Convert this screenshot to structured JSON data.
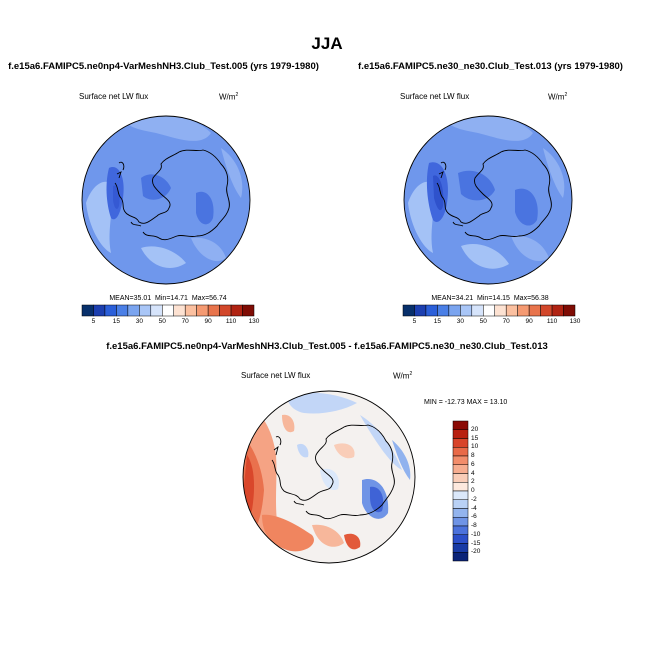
{
  "main_title": "JJA",
  "panels": [
    {
      "title": "f.e15a6.FAMIPC5.ne0np4-VarMeshNH3.Club_Test.005 (yrs 1979-1980)",
      "variable": "Surface net LW flux",
      "units": "W/m",
      "units_exp": "2",
      "stats": {
        "mean_label": "MEAN=",
        "mean": "35.01",
        "min_label": "Min=",
        "min": "14.71",
        "max_label": "Max=",
        "max": "56.74"
      }
    },
    {
      "title": "f.e15a6.FAMIPC5.ne30_ne30.Club_Test.013 (yrs 1979-1980)",
      "variable": "Surface net LW flux",
      "units": "W/m",
      "units_exp": "2",
      "stats": {
        "mean_label": "MEAN=",
        "mean": "34.21",
        "min_label": "Min=",
        "min": "14.15",
        "max_label": "Max=",
        "max": "56.38"
      }
    },
    {
      "title": "f.e15a6.FAMIPC5.ne0np4-VarMeshNH3.Club_Test.005 - f.e15a6.FAMIPC5.ne30_ne30.Club_Test.013",
      "variable": "Surface net LW flux",
      "units": "W/m",
      "units_exp": "2",
      "stats_text": "MIN = -12.73  MAX =  13.10"
    }
  ],
  "chart_data": [
    {
      "type": "heatmap",
      "projection": "south-polar-stereographic",
      "region": "Antarctica",
      "colorbar": {
        "orientation": "horizontal",
        "ticks": [
          "5",
          "15",
          "30",
          "50",
          "70",
          "90",
          "110",
          "130"
        ],
        "colors": [
          "#08306b",
          "#1c3fb0",
          "#2b5fd9",
          "#4a7fe6",
          "#7aa4ef",
          "#a9c6f7",
          "#d6e4fb",
          "#ffffff",
          "#fde2d2",
          "#fbc0a0",
          "#f59a72",
          "#e8744c",
          "#d2472a",
          "#b02312",
          "#7f0c04"
        ]
      },
      "field_colors": {
        "background": "#6f97ec",
        "low": "#4067dd",
        "lower": "#3559d3",
        "high": "#a4c2f6"
      }
    },
    {
      "type": "heatmap",
      "projection": "south-polar-stereographic",
      "region": "Antarctica",
      "colorbar": {
        "orientation": "horizontal",
        "ticks": [
          "5",
          "15",
          "30",
          "50",
          "70",
          "90",
          "110",
          "130"
        ],
        "colors": [
          "#08306b",
          "#1c3fb0",
          "#2b5fd9",
          "#4a7fe6",
          "#7aa4ef",
          "#a9c6f7",
          "#d6e4fb",
          "#ffffff",
          "#fde2d2",
          "#fbc0a0",
          "#f59a72",
          "#e8744c",
          "#d2472a",
          "#b02312",
          "#7f0c04"
        ]
      },
      "field_colors": {
        "background": "#6f97ec",
        "low": "#4067dd",
        "lower": "#3559d3",
        "high": "#a4c2f6"
      }
    },
    {
      "type": "heatmap",
      "projection": "south-polar-stereographic",
      "region": "Antarctica",
      "colorbar": {
        "orientation": "vertical",
        "ticks": [
          "20",
          "15",
          "10",
          "8",
          "6",
          "4",
          "2",
          "0",
          "-2",
          "-4",
          "-6",
          "-8",
          "-10",
          "-15",
          "-20"
        ],
        "colors": [
          "#8b0a05",
          "#b82010",
          "#d8442a",
          "#e96a48",
          "#f28d6b",
          "#f6ad90",
          "#f9cdb8",
          "#fde9de",
          "#dbe8fa",
          "#b9d1f5",
          "#93b4ee",
          "#6f94e6",
          "#4c72dc",
          "#2c4fc9",
          "#183aa5",
          "#0a2378"
        ]
      }
    }
  ]
}
